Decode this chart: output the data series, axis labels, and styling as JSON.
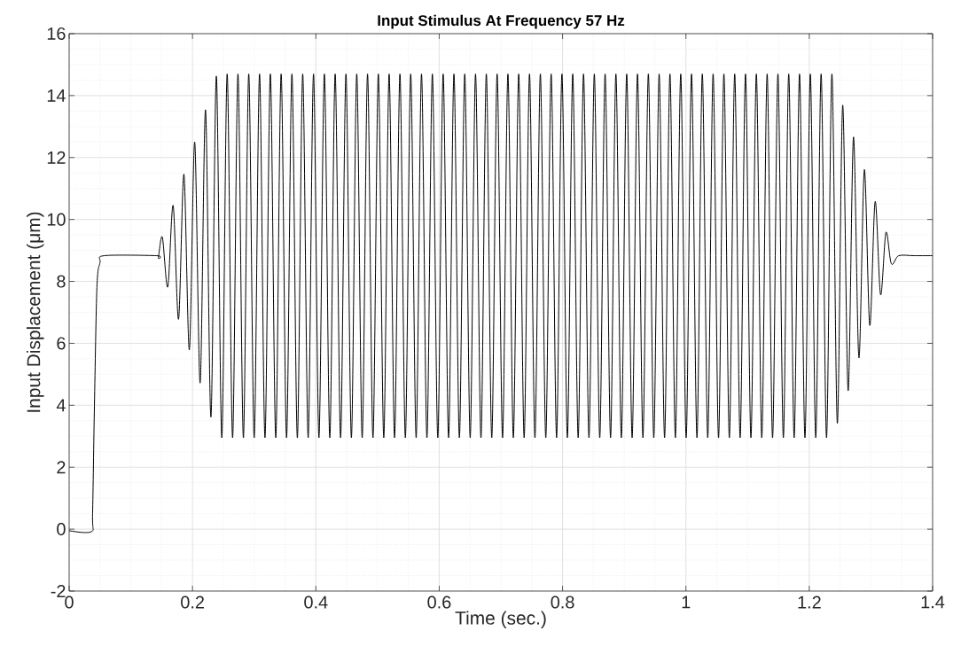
{
  "chart_data": {
    "type": "line",
    "title": "Input Stimulus At Frequency 57 Hz",
    "xlabel": "Time (sec.)",
    "ylabel": "Input Displacement (μm)",
    "xlim": [
      0,
      1.4
    ],
    "ylim": [
      -2,
      16
    ],
    "xticks": [
      0,
      0.2,
      0.4,
      0.6,
      0.8,
      1,
      1.2,
      1.4
    ],
    "yticks": [
      -2,
      0,
      2,
      4,
      6,
      8,
      10,
      12,
      14,
      16
    ],
    "grid": true,
    "series": [
      {
        "color": "#000000",
        "x": [
          0,
          0.036,
          0.038,
          0.041,
          0.045,
          0.05,
          0.057,
          0.142,
          0.1445,
          0.1511,
          0.1599,
          0.1686,
          0.1774,
          0.1861,
          0.1949,
          0.2036,
          0.2124,
          0.2211,
          0.2299,
          0.2387,
          0.2475,
          0.2562,
          0.265,
          0.2737,
          0.2825,
          0.2912,
          0.3,
          0.3087,
          0.3175,
          0.3262,
          0.335,
          0.3437,
          0.3525,
          0.3612,
          0.37,
          0.3787,
          0.3875,
          0.3962,
          0.405,
          0.4138,
          0.4226,
          0.4313,
          0.4401,
          0.4488,
          0.4576,
          0.4663,
          0.4751,
          0.4838,
          0.4926,
          0.5013,
          0.5101,
          0.5188,
          0.5276,
          0.5363,
          0.5451,
          0.5538,
          0.5626,
          0.5713,
          0.5801,
          0.5889,
          0.5977,
          0.6064,
          0.6152,
          0.6239,
          0.6327,
          0.6414,
          0.6502,
          0.6589,
          0.6677,
          0.6764,
          0.6852,
          0.6939,
          0.7027,
          0.7114,
          0.7202,
          0.7289,
          0.7377,
          0.7464,
          0.7552,
          0.764,
          0.7728,
          0.7815,
          0.7903,
          0.799,
          0.8078,
          0.8165,
          0.8253,
          0.834,
          0.8428,
          0.8515,
          0.8603,
          0.869,
          0.8778,
          0.8865,
          0.8953,
          0.904,
          0.9128,
          0.9215,
          0.9303,
          0.9391,
          0.9479,
          0.9566,
          0.9654,
          0.9741,
          0.9829,
          0.9916,
          1.0004,
          1.0091,
          1.0179,
          1.0266,
          1.0354,
          1.0441,
          1.0529,
          1.0616,
          1.0704,
          1.0791,
          1.0879,
          1.0966,
          1.1054,
          1.1142,
          1.123,
          1.1317,
          1.1405,
          1.1492,
          1.158,
          1.1667,
          1.1755,
          1.1842,
          1.193,
          1.2017,
          1.2105,
          1.2192,
          1.228,
          1.2367,
          1.2455,
          1.2542,
          1.263,
          1.2717,
          1.2805,
          1.2893,
          1.2981,
          1.3068,
          1.3156,
          1.3243,
          1.3331,
          1.345,
          1.37,
          1.4
        ],
        "values": [
          -0.05,
          -0.08,
          0.5,
          4,
          7.8,
          8.6,
          8.83,
          8.83,
          8.77,
          9.43,
          7.82,
          10.45,
          6.78,
          11.46,
          5.79,
          12.5,
          4.72,
          13.54,
          3.62,
          14.63,
          2.95,
          14.7,
          2.95,
          14.7,
          2.95,
          14.7,
          2.95,
          14.7,
          2.95,
          14.7,
          2.95,
          14.7,
          2.95,
          14.7,
          2.95,
          14.7,
          2.95,
          14.7,
          2.95,
          14.7,
          2.95,
          14.7,
          2.95,
          14.7,
          2.95,
          14.7,
          2.95,
          14.7,
          2.95,
          14.7,
          2.95,
          14.7,
          2.95,
          14.7,
          2.95,
          14.7,
          2.95,
          14.7,
          2.95,
          14.7,
          2.95,
          14.7,
          2.95,
          14.7,
          2.95,
          14.7,
          2.95,
          14.7,
          2.95,
          14.7,
          2.95,
          14.7,
          2.95,
          14.7,
          2.95,
          14.7,
          2.95,
          14.7,
          2.95,
          14.7,
          2.95,
          14.7,
          2.95,
          14.7,
          2.95,
          14.7,
          2.95,
          14.7,
          2.95,
          14.7,
          2.95,
          14.7,
          2.95,
          14.7,
          2.95,
          14.7,
          2.95,
          14.7,
          2.95,
          14.7,
          2.95,
          14.7,
          2.95,
          14.7,
          2.95,
          14.7,
          2.95,
          14.7,
          2.95,
          14.7,
          2.95,
          14.7,
          2.95,
          14.7,
          2.95,
          14.7,
          2.95,
          14.7,
          2.95,
          14.7,
          2.95,
          14.7,
          2.95,
          14.7,
          2.95,
          14.7,
          2.95,
          14.7,
          2.95,
          14.7,
          2.95,
          14.7,
          2.95,
          14.7,
          3.42,
          13.69,
          4.47,
          12.66,
          5.53,
          11.61,
          6.58,
          10.58,
          7.57,
          9.58,
          8.57,
          8.83,
          8.83,
          8.83
        ]
      }
    ]
  }
}
